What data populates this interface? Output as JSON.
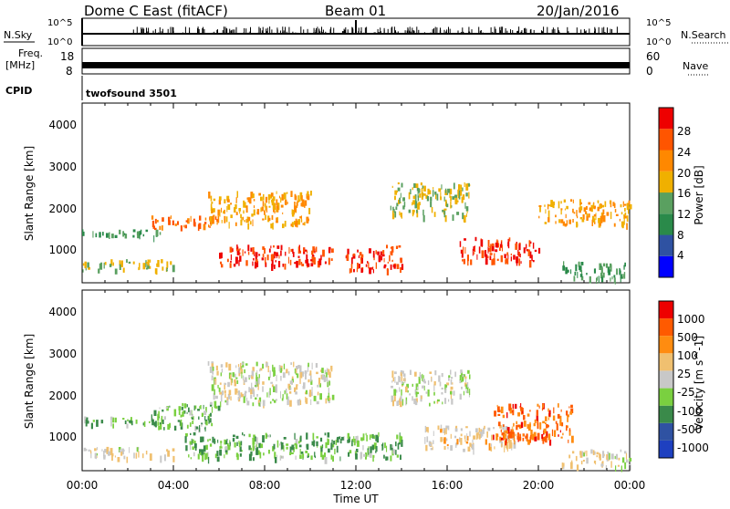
{
  "header": {
    "station": "Dome C East (fitACF)",
    "beam": "Beam 01",
    "date": "20/Jan/2016"
  },
  "strip_labels": {
    "nsky": "N.Sky",
    "freq_top": "Freq.",
    "freq_unit": "[MHz]",
    "cpid": "CPID",
    "nsearch": "N.Search",
    "nave": "Nave",
    "cpid_value": "twofsound 3501"
  },
  "strip_ticks": {
    "nsky_left": [
      "10^5",
      "10^0"
    ],
    "nsearch_right": [
      "10^5",
      "10^0"
    ],
    "freq_left": [
      "18",
      "8"
    ],
    "nave_right": [
      "60",
      "0"
    ]
  },
  "panels": [
    {
      "name": "power",
      "ylabel": "Slant Range [km]",
      "yticks": [
        "4000",
        "3000",
        "2000",
        "1000"
      ],
      "colorbar_label": "Power [dB]",
      "colorbar_ticks": [
        "28",
        "24",
        "20",
        "16",
        "12",
        "8",
        "4"
      ],
      "colors": [
        "#0000ff",
        "#2f52a2",
        "#2a8a4a",
        "#5aa060",
        "#f0b000",
        "#ff8800",
        "#ff5500",
        "#ee0000"
      ]
    },
    {
      "name": "velocity",
      "ylabel": "Slant Range [km]",
      "yticks": [
        "4000",
        "3000",
        "2000",
        "1000"
      ],
      "colorbar_label": "Velocity [m s^-1]",
      "colorbar_ticks": [
        "1000",
        "500",
        "100",
        "25",
        "-25",
        "-100",
        "-500",
        "-1000"
      ],
      "colors": [
        "#ee0000",
        "#ff5a00",
        "#ff8c10",
        "#f0c070",
        "#c8c8c8",
        "#7ad040",
        "#3a8a4a",
        "#2f52a2",
        "#1e40c0"
      ]
    }
  ],
  "xaxis": {
    "ticks": [
      "00:00",
      "04:00",
      "08:00",
      "12:00",
      "16:00",
      "20:00",
      "00:00"
    ],
    "label": "Time UT"
  },
  "chart_data": {
    "type": "heatmap",
    "title": "Dome C East (fitACF)",
    "subtitle": "Beam 01",
    "date": "20/Jan/2016",
    "xlabel": "Time UT",
    "ylabel": "Slant Range [km]",
    "xlim": [
      "00:00",
      "24:00"
    ],
    "ylim": [
      180,
      4500
    ],
    "panels": [
      {
        "quantity": "Power [dB]",
        "scale": [
          0,
          32
        ],
        "blobs": [
          {
            "t": [
              0.0,
              3.5
            ],
            "r": [
              1300,
              1480
            ],
            "v": 12
          },
          {
            "t": [
              0.0,
              4.0
            ],
            "r": [
              500,
              750
            ],
            "v": 16
          },
          {
            "t": [
              3.0,
              6.0
            ],
            "r": [
              1500,
              1800
            ],
            "v": 24
          },
          {
            "t": [
              5.5,
              10.0
            ],
            "r": [
              1600,
              2400
            ],
            "v": 20
          },
          {
            "t": [
              6.0,
              11.0
            ],
            "r": [
              600,
              1100
            ],
            "v": 28
          },
          {
            "t": [
              11.5,
              14.0
            ],
            "r": [
              500,
              1100
            ],
            "v": 28
          },
          {
            "t": [
              13.5,
              17.0
            ],
            "r": [
              1800,
              2600
            ],
            "v": 16
          },
          {
            "t": [
              16.5,
              20.0
            ],
            "r": [
              700,
              1300
            ],
            "v": 28
          },
          {
            "t": [
              20.0,
              24.0
            ],
            "r": [
              1600,
              2200
            ],
            "v": 20
          },
          {
            "t": [
              21.0,
              24.0
            ],
            "r": [
              300,
              700
            ],
            "v": 12
          }
        ]
      },
      {
        "quantity": "Velocity [m s^-1]",
        "scale": [
          -1000,
          1000
        ],
        "blobs": [
          {
            "t": [
              0.0,
              3.5
            ],
            "r": [
              1300,
              1480
            ],
            "v": -300
          },
          {
            "t": [
              0.0,
              4.0
            ],
            "r": [
              500,
              750
            ],
            "v": 50
          },
          {
            "t": [
              3.0,
              6.0
            ],
            "r": [
              1200,
              1800
            ],
            "v": -300
          },
          {
            "t": [
              5.5,
              11.0
            ],
            "r": [
              1800,
              2800
            ],
            "v": 0
          },
          {
            "t": [
              4.5,
              14.0
            ],
            "r": [
              500,
              1100
            ],
            "v": -300
          },
          {
            "t": [
              13.5,
              17.0
            ],
            "r": [
              1800,
              2600
            ],
            "v": 0
          },
          {
            "t": [
              15.0,
              19.0
            ],
            "r": [
              700,
              1300
            ],
            "v": 150
          },
          {
            "t": [
              18.0,
              21.5
            ],
            "r": [
              900,
              1800
            ],
            "v": 600
          },
          {
            "t": [
              21.0,
              24.0
            ],
            "r": [
              300,
              700
            ],
            "v": 80
          }
        ]
      }
    ]
  }
}
